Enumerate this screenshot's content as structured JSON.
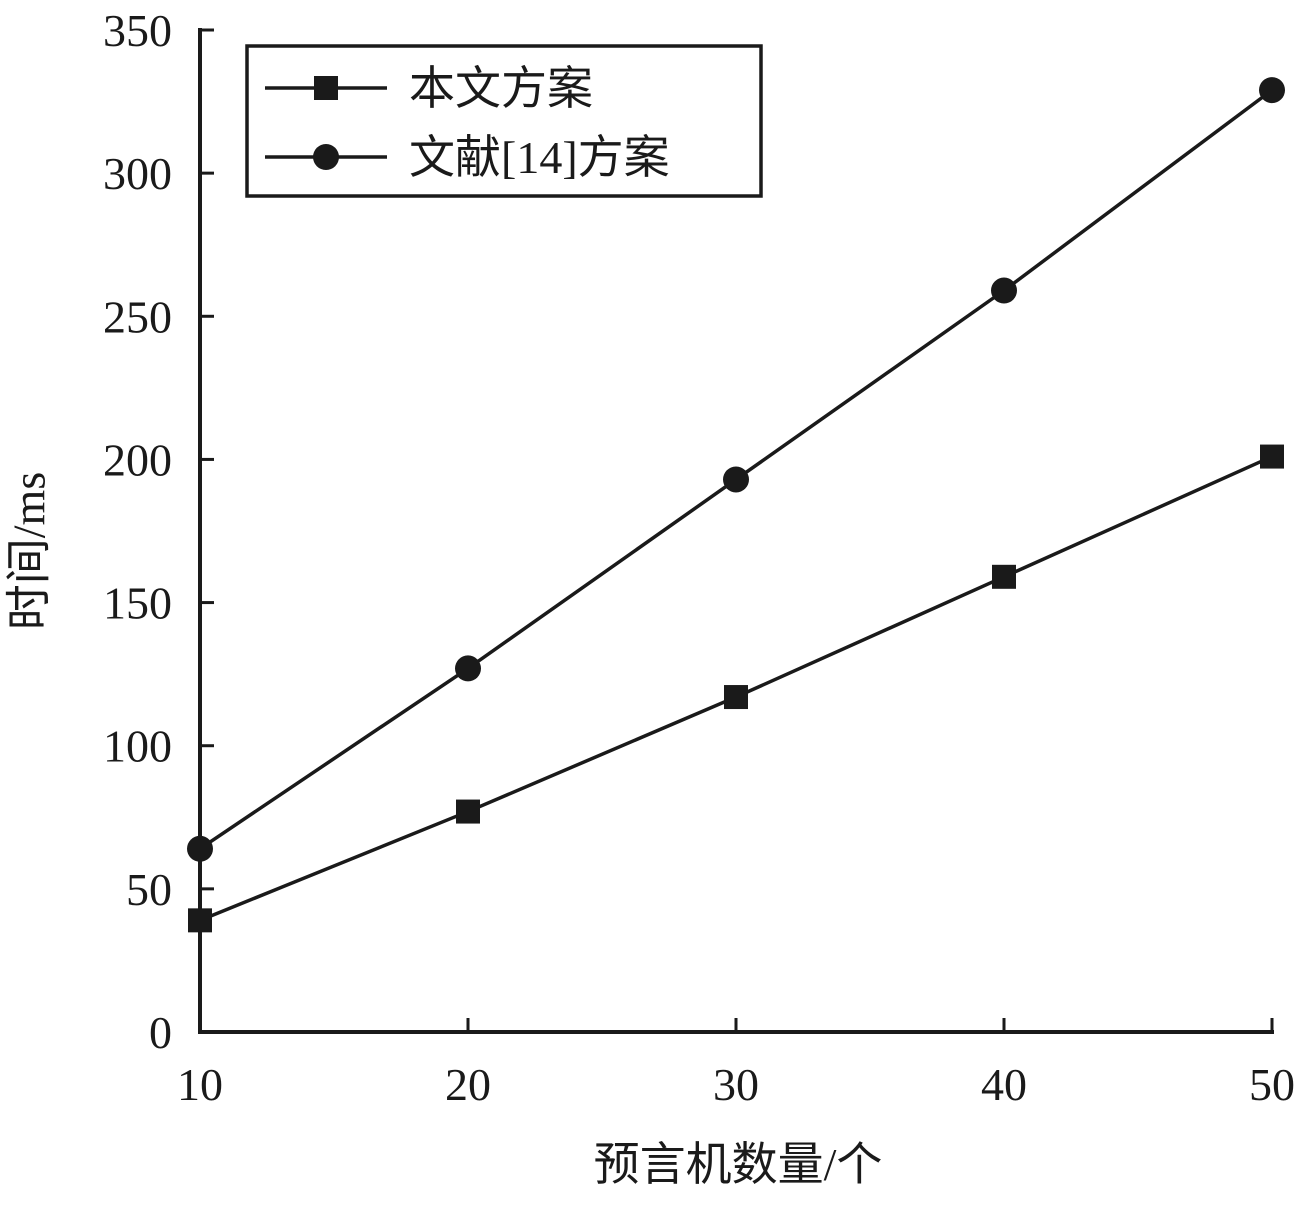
{
  "colors": {
    "line": "#1a1a1a",
    "background": "#ffffff"
  },
  "chart_data": {
    "type": "line",
    "title": "",
    "xlabel": "预言机数量/个",
    "ylabel": "时间/ms",
    "x": [
      10,
      20,
      30,
      40,
      50
    ],
    "xlim": [
      10,
      50
    ],
    "ylim": [
      0,
      350
    ],
    "xticks": [
      "10",
      "20",
      "30",
      "40",
      "50"
    ],
    "yticks": [
      "0",
      "50",
      "100",
      "150",
      "200",
      "250",
      "300",
      "350"
    ],
    "grid": false,
    "legend": "top-left",
    "series": [
      {
        "name": "本文方案",
        "marker": "square",
        "values": [
          39,
          77,
          117,
          159,
          201
        ]
      },
      {
        "name": "文献[14]方案",
        "marker": "circle",
        "values": [
          64,
          127,
          193,
          259,
          329
        ]
      }
    ]
  }
}
